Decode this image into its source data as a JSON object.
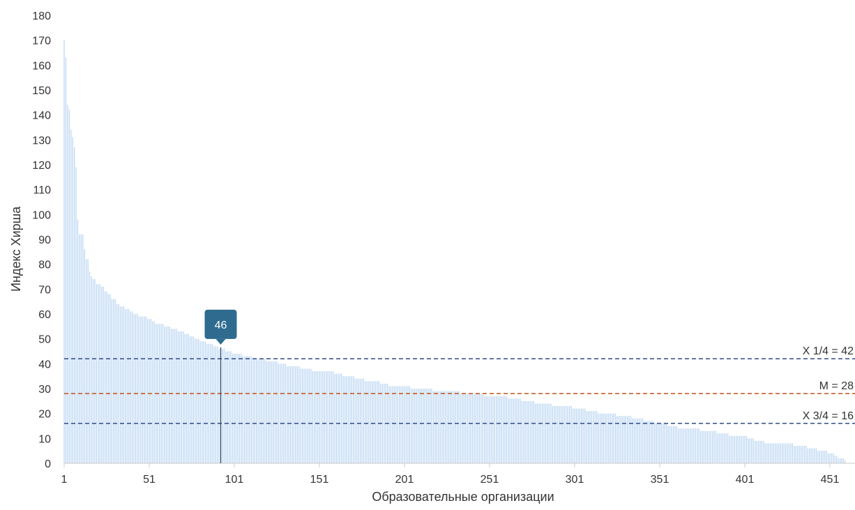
{
  "chart_data": {
    "type": "bar",
    "title": "",
    "xlabel": "Образовательные организации",
    "ylabel": "Индекс Хирша",
    "ylim": [
      0,
      180
    ],
    "y_ticks": [
      "0",
      "10",
      "20",
      "30",
      "40",
      "50",
      "60",
      "70",
      "80",
      "90",
      "100",
      "110",
      "120",
      "130",
      "140",
      "150",
      "160",
      "170",
      "180"
    ],
    "x_ticks": [
      "1",
      "51",
      "101",
      "151",
      "201",
      "251",
      "301",
      "351",
      "401",
      "451"
    ],
    "x_tick_values": [
      1,
      51,
      101,
      151,
      201,
      251,
      301,
      351,
      401,
      451
    ],
    "x_range": [
      1,
      460
    ],
    "n_organizations": 460,
    "bar_color": "#bdd7f2",
    "curve_points": [
      [
        1,
        170
      ],
      [
        2,
        163
      ],
      [
        3,
        144
      ],
      [
        4,
        142
      ],
      [
        5,
        134
      ],
      [
        6,
        131
      ],
      [
        7,
        127
      ],
      [
        8,
        119
      ],
      [
        9,
        98
      ],
      [
        10,
        92
      ],
      [
        12,
        92
      ],
      [
        13,
        86
      ],
      [
        14,
        82
      ],
      [
        16,
        77
      ],
      [
        17,
        75
      ],
      [
        18,
        74
      ],
      [
        20,
        72
      ],
      [
        23,
        71
      ],
      [
        25,
        69
      ],
      [
        27,
        68
      ],
      [
        29,
        66
      ],
      [
        32,
        64
      ],
      [
        34,
        63
      ],
      [
        37,
        62
      ],
      [
        40,
        61
      ],
      [
        42,
        60
      ],
      [
        45,
        59
      ],
      [
        50,
        58
      ],
      [
        53,
        57
      ],
      [
        55,
        56
      ],
      [
        60,
        55
      ],
      [
        64,
        54
      ],
      [
        68,
        53
      ],
      [
        72,
        52
      ],
      [
        75,
        51
      ],
      [
        78,
        50
      ],
      [
        81,
        49
      ],
      [
        85,
        48
      ],
      [
        89,
        47
      ],
      [
        92,
        46
      ],
      [
        96,
        45
      ],
      [
        100,
        44
      ],
      [
        104,
        44
      ],
      [
        106,
        43
      ],
      [
        112,
        42
      ],
      [
        120,
        41
      ],
      [
        127,
        40
      ],
      [
        132,
        39
      ],
      [
        140,
        38
      ],
      [
        147,
        37
      ],
      [
        160,
        36
      ],
      [
        165,
        35
      ],
      [
        172,
        34
      ],
      [
        178,
        33
      ],
      [
        187,
        32
      ],
      [
        192,
        31
      ],
      [
        205,
        30
      ],
      [
        218,
        29
      ],
      [
        234,
        28
      ],
      [
        248,
        27
      ],
      [
        262,
        26
      ],
      [
        270,
        25
      ],
      [
        278,
        24
      ],
      [
        288,
        23
      ],
      [
        300,
        22
      ],
      [
        308,
        21
      ],
      [
        315,
        20
      ],
      [
        326,
        19
      ],
      [
        335,
        18
      ],
      [
        342,
        17
      ],
      [
        348,
        16
      ],
      [
        356,
        15
      ],
      [
        362,
        14
      ],
      [
        375,
        13
      ],
      [
        385,
        12
      ],
      [
        392,
        11
      ],
      [
        403,
        10
      ],
      [
        407,
        9
      ],
      [
        413,
        8
      ],
      [
        430,
        7
      ],
      [
        438,
        6
      ],
      [
        444,
        5
      ],
      [
        450,
        4
      ],
      [
        454,
        3
      ],
      [
        456,
        2
      ],
      [
        460,
        1
      ]
    ],
    "reference_lines": [
      {
        "label": "X 1/4 = 42",
        "value": 42,
        "color": "#2f4a8a"
      },
      {
        "label": "M = 28",
        "value": 28,
        "color": "#c0511a"
      },
      {
        "label": "X 3/4 = 16",
        "value": 16,
        "color": "#2f4a8a"
      }
    ],
    "highlight": {
      "x": 93,
      "value": 46,
      "label": "46",
      "color": "#2e6b8f"
    },
    "legend": "none",
    "grid": false
  }
}
